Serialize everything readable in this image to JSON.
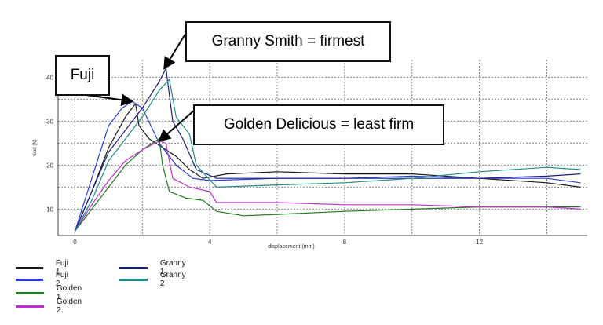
{
  "chart_data": {
    "type": "line",
    "title": "",
    "xlabel": "displacement (mm)",
    "ylabel": "load (N)",
    "xlim": [
      -0.5,
      15.2
    ],
    "ylim": [
      4,
      44
    ],
    "x_ticks": [
      0,
      4,
      8,
      12
    ],
    "x_tick_labels": [
      "0",
      "4",
      "8",
      "12"
    ],
    "y_ticks": [
      10,
      20,
      30,
      40
    ],
    "y_tick_labels": [
      "10",
      "20",
      "30",
      "40"
    ],
    "grid": true,
    "legend_position": "bottom-left",
    "series": [
      {
        "name": "Fuji 1",
        "color": "#1a1a1a",
        "points": [
          [
            0,
            5
          ],
          [
            0.5,
            14
          ],
          [
            1,
            24
          ],
          [
            1.5,
            31
          ],
          [
            1.8,
            34
          ],
          [
            1.9,
            29
          ],
          [
            2.2,
            26
          ],
          [
            2.6,
            24
          ],
          [
            3,
            22
          ],
          [
            3.4,
            19
          ],
          [
            3.8,
            17
          ],
          [
            4.5,
            18
          ],
          [
            6,
            18.5
          ],
          [
            8,
            18
          ],
          [
            10,
            18
          ],
          [
            12,
            17
          ],
          [
            14,
            16
          ],
          [
            15,
            15
          ]
        ]
      },
      {
        "name": "Fuji 2",
        "color": "#2b3de0",
        "points": [
          [
            0,
            5
          ],
          [
            0.5,
            17
          ],
          [
            1,
            29
          ],
          [
            1.4,
            33
          ],
          [
            1.7,
            34.5
          ],
          [
            2,
            33
          ],
          [
            2.5,
            25
          ],
          [
            3,
            20
          ],
          [
            3.5,
            17
          ],
          [
            4,
            16.5
          ],
          [
            6,
            17
          ],
          [
            8,
            17
          ],
          [
            10,
            17.5
          ],
          [
            12,
            17
          ],
          [
            14,
            17
          ],
          [
            15,
            16
          ]
        ]
      },
      {
        "name": "Golden 1",
        "color": "#1f7a1f",
        "points": [
          [
            0,
            5
          ],
          [
            0.5,
            10
          ],
          [
            1,
            15
          ],
          [
            1.5,
            20
          ],
          [
            2,
            23.5
          ],
          [
            2.5,
            26
          ],
          [
            2.6,
            20
          ],
          [
            2.8,
            14
          ],
          [
            3.3,
            12.5
          ],
          [
            3.8,
            12
          ],
          [
            4.2,
            9.5
          ],
          [
            5,
            8.5
          ],
          [
            6,
            8.8
          ],
          [
            8,
            9.5
          ],
          [
            10,
            10
          ],
          [
            12,
            10.5
          ],
          [
            14,
            10.5
          ],
          [
            15,
            10.5
          ]
        ]
      },
      {
        "name": "Golden 2",
        "color": "#c030d0",
        "points": [
          [
            0,
            5
          ],
          [
            0.5,
            11
          ],
          [
            1,
            16.5
          ],
          [
            1.5,
            21
          ],
          [
            2,
            23.5
          ],
          [
            2.5,
            25.5
          ],
          [
            2.7,
            25
          ],
          [
            2.9,
            17
          ],
          [
            3.4,
            15
          ],
          [
            4,
            14
          ],
          [
            4.2,
            11.5
          ],
          [
            6,
            11.5
          ],
          [
            8,
            11
          ],
          [
            10,
            11
          ],
          [
            12,
            10.5
          ],
          [
            14,
            10.5
          ],
          [
            15,
            10
          ]
        ]
      },
      {
        "name": "Granny 1",
        "color": "#1a2080",
        "points": [
          [
            0,
            5
          ],
          [
            0.5,
            14
          ],
          [
            1,
            23
          ],
          [
            1.5,
            28
          ],
          [
            2,
            33
          ],
          [
            2.5,
            39
          ],
          [
            2.7,
            42
          ],
          [
            2.9,
            30
          ],
          [
            3.2,
            26
          ],
          [
            3.6,
            19
          ],
          [
            4.2,
            17
          ],
          [
            6,
            17
          ],
          [
            8,
            17
          ],
          [
            10,
            17
          ],
          [
            12,
            17
          ],
          [
            14,
            17.5
          ],
          [
            15,
            18
          ]
        ]
      },
      {
        "name": "Granny 2",
        "color": "#1e8c8c",
        "points": [
          [
            0,
            5
          ],
          [
            0.5,
            12
          ],
          [
            1,
            21
          ],
          [
            1.5,
            26
          ],
          [
            2,
            31
          ],
          [
            2.5,
            37
          ],
          [
            2.8,
            39.5
          ],
          [
            3,
            31
          ],
          [
            3.4,
            27
          ],
          [
            3.6,
            20
          ],
          [
            4.2,
            15
          ],
          [
            6,
            15.5
          ],
          [
            8,
            16
          ],
          [
            10,
            17
          ],
          [
            12,
            18.5
          ],
          [
            14,
            19.5
          ],
          [
            15,
            19
          ]
        ]
      }
    ],
    "annotations": [
      {
        "text": "Fuji",
        "target": [
          1.7,
          34.5
        ]
      },
      {
        "text": "Granny Smith = firmest",
        "target": [
          2.65,
          42
        ]
      },
      {
        "text": "Golden Delicious = least firm",
        "target": [
          2.5,
          25.5
        ]
      }
    ]
  }
}
